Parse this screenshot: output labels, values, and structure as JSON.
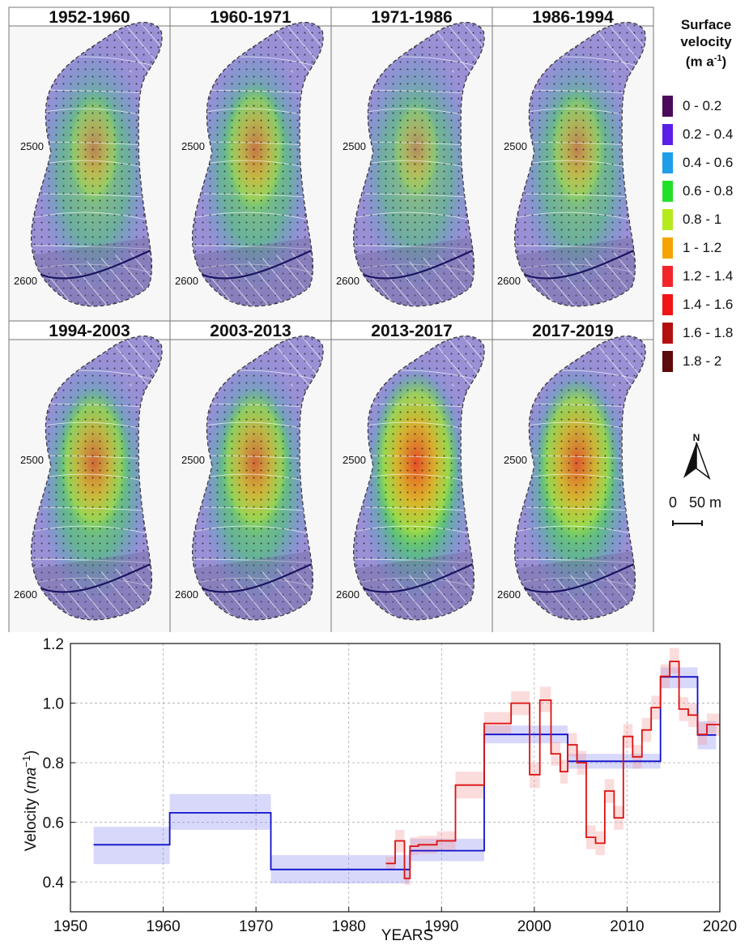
{
  "panels": [
    {
      "title": "1952-1960",
      "label_upper": "2500",
      "label_lower": "2600",
      "hot": 0.35
    },
    {
      "title": "1960-1971",
      "label_upper": "2500",
      "label_lower": "2600",
      "hot": 0.5
    },
    {
      "title": "1971-1986",
      "label_upper": "2500",
      "label_lower": "2600",
      "hot": 0.25
    },
    {
      "title": "1986-1994",
      "label_upper": "2500",
      "label_lower": "2600",
      "hot": 0.4
    },
    {
      "title": "1994-2003",
      "label_upper": "2500",
      "label_lower": "2600",
      "hot": 0.65
    },
    {
      "title": "2003-2013",
      "label_upper": "2500",
      "label_lower": "2600",
      "hot": 0.65
    },
    {
      "title": "2013-2017",
      "label_upper": "2500",
      "label_lower": "2600",
      "hot": 0.9
    },
    {
      "title": "2017-2019",
      "label_upper": "2500",
      "label_lower": "2600",
      "hot": 0.8
    }
  ],
  "legend": {
    "title_lines": [
      "Surface",
      "velocity"
    ],
    "unit_base": "(m a",
    "unit_sup": "-1",
    "unit_close": ")",
    "items": [
      {
        "label": "0 - 0.2",
        "color": "#4b0a5a"
      },
      {
        "label": "0.2 - 0.4",
        "color": "#5a1fe6"
      },
      {
        "label": "0.4 - 0.6",
        "color": "#1e9ee8"
      },
      {
        "label": "0.6 - 0.8",
        "color": "#22e02a"
      },
      {
        "label": "0.8 - 1",
        "color": "#b6ea1c"
      },
      {
        "label": "1 - 1.2",
        "color": "#f5a300"
      },
      {
        "label": "1.2 - 1.4",
        "color": "#f2252b"
      },
      {
        "label": "1.4 - 1.6",
        "color": "#f01414"
      },
      {
        "label": "1.6 - 1.8",
        "color": "#b40f0f"
      },
      {
        "label": "1.8 - 2",
        "color": "#5c0a0a"
      }
    ],
    "north_label": "N",
    "scale_label": "0   50 m"
  },
  "chart_data": {
    "type": "line",
    "xlabel": "YEARS",
    "ylabel_base": "Velocity (",
    "ylabel_italic": "ma",
    "ylabel_sup": "−1",
    "ylabel_close": ")",
    "xlim": [
      1950,
      2020
    ],
    "ylim": [
      0.3,
      1.2
    ],
    "xticks": [
      1950,
      1960,
      1970,
      1980,
      1990,
      2000,
      2010,
      2020
    ],
    "yticks": [
      0.4,
      0.6,
      0.8,
      1.0,
      1.2
    ],
    "ytick_labels": [
      "0.4",
      "0.6",
      "0.8",
      "1.0",
      "1.2"
    ],
    "grid": true,
    "series": [
      {
        "color": "#1010cc",
        "band_color": "#8f8ff0",
        "steps": [
          {
            "x0": 1952.5,
            "x1": 1960.7,
            "y": 0.525,
            "lo": 0.46,
            "hi": 0.585
          },
          {
            "x0": 1960.7,
            "x1": 1971.6,
            "y": 0.632,
            "lo": 0.575,
            "hi": 0.695
          },
          {
            "x0": 1971.6,
            "x1": 1986.6,
            "y": 0.442,
            "lo": 0.395,
            "hi": 0.49
          },
          {
            "x0": 1986.6,
            "x1": 1994.6,
            "y": 0.505,
            "lo": 0.47,
            "hi": 0.545
          },
          {
            "x0": 1994.6,
            "x1": 2003.6,
            "y": 0.895,
            "lo": 0.865,
            "hi": 0.925
          },
          {
            "x0": 2003.6,
            "x1": 2013.6,
            "y": 0.805,
            "lo": 0.78,
            "hi": 0.83
          },
          {
            "x0": 2013.6,
            "x1": 2017.6,
            "y": 1.088,
            "lo": 1.05,
            "hi": 1.12
          },
          {
            "x0": 2017.6,
            "x1": 2019.6,
            "y": 0.893,
            "lo": 0.845,
            "hi": 0.94
          }
        ]
      },
      {
        "color": "#dd1111",
        "band_color": "#f49a9a",
        "steps": [
          {
            "x0": 1984.0,
            "x1": 1985.0,
            "y": 0.462,
            "lo": 0.44,
            "hi": 0.485
          },
          {
            "x0": 1985.0,
            "x1": 1986.0,
            "y": 0.538,
            "lo": 0.5,
            "hi": 0.575
          },
          {
            "x0": 1986.0,
            "x1": 1986.6,
            "y": 0.412,
            "lo": 0.39,
            "hi": 0.44
          },
          {
            "x0": 1986.6,
            "x1": 1987.5,
            "y": 0.52,
            "lo": 0.49,
            "hi": 0.55
          },
          {
            "x0": 1987.5,
            "x1": 1989.5,
            "y": 0.525,
            "lo": 0.495,
            "hi": 0.555
          },
          {
            "x0": 1989.5,
            "x1": 1991.5,
            "y": 0.538,
            "lo": 0.505,
            "hi": 0.57
          },
          {
            "x0": 1991.5,
            "x1": 1994.6,
            "y": 0.725,
            "lo": 0.68,
            "hi": 0.77
          },
          {
            "x0": 1994.6,
            "x1": 1997.5,
            "y": 0.932,
            "lo": 0.895,
            "hi": 0.97
          },
          {
            "x0": 1997.5,
            "x1": 1999.5,
            "y": 1.0,
            "lo": 0.96,
            "hi": 1.04
          },
          {
            "x0": 1999.5,
            "x1": 2000.6,
            "y": 0.76,
            "lo": 0.715,
            "hi": 0.8
          },
          {
            "x0": 2000.6,
            "x1": 2001.8,
            "y": 1.01,
            "lo": 0.97,
            "hi": 1.055
          },
          {
            "x0": 2001.8,
            "x1": 2002.8,
            "y": 0.83,
            "lo": 0.79,
            "hi": 0.87
          },
          {
            "x0": 2002.8,
            "x1": 2003.6,
            "y": 0.77,
            "lo": 0.73,
            "hi": 0.81
          },
          {
            "x0": 2003.6,
            "x1": 2004.6,
            "y": 0.86,
            "lo": 0.82,
            "hi": 0.9
          },
          {
            "x0": 2004.6,
            "x1": 2005.6,
            "y": 0.8,
            "lo": 0.76,
            "hi": 0.84
          },
          {
            "x0": 2005.6,
            "x1": 2006.6,
            "y": 0.55,
            "lo": 0.51,
            "hi": 0.59
          },
          {
            "x0": 2006.6,
            "x1": 2007.6,
            "y": 0.53,
            "lo": 0.49,
            "hi": 0.57
          },
          {
            "x0": 2007.6,
            "x1": 2008.6,
            "y": 0.705,
            "lo": 0.665,
            "hi": 0.745
          },
          {
            "x0": 2008.6,
            "x1": 2009.6,
            "y": 0.615,
            "lo": 0.575,
            "hi": 0.655
          },
          {
            "x0": 2009.6,
            "x1": 2010.6,
            "y": 0.888,
            "lo": 0.85,
            "hi": 0.93
          },
          {
            "x0": 2010.6,
            "x1": 2011.6,
            "y": 0.82,
            "lo": 0.78,
            "hi": 0.86
          },
          {
            "x0": 2011.6,
            "x1": 2012.6,
            "y": 0.91,
            "lo": 0.87,
            "hi": 0.95
          },
          {
            "x0": 2012.6,
            "x1": 2013.6,
            "y": 0.985,
            "lo": 0.945,
            "hi": 1.025
          },
          {
            "x0": 2013.6,
            "x1": 2014.6,
            "y": 1.09,
            "lo": 1.05,
            "hi": 1.13
          },
          {
            "x0": 2014.6,
            "x1": 2015.6,
            "y": 1.14,
            "lo": 1.1,
            "hi": 1.185
          },
          {
            "x0": 2015.6,
            "x1": 2016.6,
            "y": 0.98,
            "lo": 0.94,
            "hi": 1.02
          },
          {
            "x0": 2016.6,
            "x1": 2017.6,
            "y": 0.96,
            "lo": 0.92,
            "hi": 1.0
          },
          {
            "x0": 2017.6,
            "x1": 2018.6,
            "y": 0.895,
            "lo": 0.86,
            "hi": 0.935
          },
          {
            "x0": 2018.6,
            "x1": 2020.0,
            "y": 0.928,
            "lo": 0.89,
            "hi": 0.965
          }
        ]
      }
    ]
  }
}
